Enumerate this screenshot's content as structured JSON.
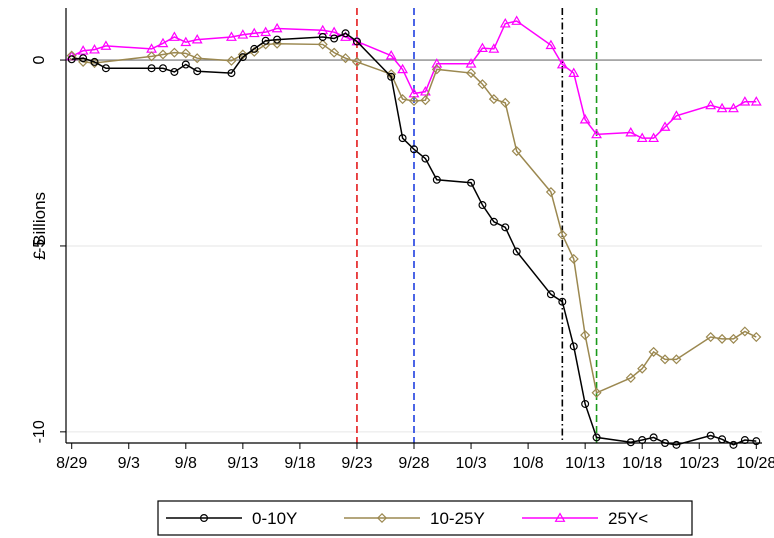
{
  "chart_data": {
    "type": "line",
    "title": "",
    "xlabel": "",
    "ylabel": "£ Billions",
    "x_ticks": [
      "8/29",
      "9/3",
      "9/8",
      "9/13",
      "9/18",
      "9/23",
      "9/28",
      "10/3",
      "10/8",
      "10/13",
      "10/18",
      "10/23",
      "10/28"
    ],
    "y_ticks": [
      "0",
      "-5",
      "-10"
    ],
    "ylim": [
      -10.3,
      1.4
    ],
    "xlim_days_from_8_29": [
      -0.5,
      60.5
    ],
    "vertical_lines": [
      {
        "x": "9/23",
        "color": "#e41a1c",
        "style": "dashed"
      },
      {
        "x": "9/28",
        "color": "#1f3fe0",
        "style": "dashed"
      },
      {
        "x": "10/11",
        "color": "#000000",
        "style": "dashdot"
      },
      {
        "x": "10/14",
        "color": "#1a9a1a",
        "style": "dashed"
      }
    ],
    "series": [
      {
        "name": "0-10Y",
        "color": "#000000",
        "marker": "circle",
        "points": [
          [
            "8/29",
            0.02
          ],
          [
            "8/30",
            0.05
          ],
          [
            "8/31",
            -0.05
          ],
          [
            "9/1",
            -0.22
          ],
          [
            "9/5",
            -0.22
          ],
          [
            "9/6",
            -0.22
          ],
          [
            "9/7",
            -0.32
          ],
          [
            "9/8",
            -0.12
          ],
          [
            "9/9",
            -0.3
          ],
          [
            "9/12",
            -0.35
          ],
          [
            "9/13",
            0.08
          ],
          [
            "9/14",
            0.3
          ],
          [
            "9/15",
            0.52
          ],
          [
            "9/16",
            0.55
          ],
          [
            "9/20",
            0.62
          ],
          [
            "9/21",
            0.58
          ],
          [
            "9/22",
            0.72
          ],
          [
            "9/23",
            0.5
          ],
          [
            "9/26",
            -0.45
          ],
          [
            "9/27",
            -2.1
          ],
          [
            "9/28",
            -2.4
          ],
          [
            "9/29",
            -2.65
          ],
          [
            "9/30",
            -3.22
          ],
          [
            "10/3",
            -3.3
          ],
          [
            "10/4",
            -3.9
          ],
          [
            "10/5",
            -4.35
          ],
          [
            "10/6",
            -4.5
          ],
          [
            "10/7",
            -5.15
          ],
          [
            "10/10",
            -6.3
          ],
          [
            "10/11",
            -6.5
          ],
          [
            "10/12",
            -7.7
          ],
          [
            "10/13",
            -9.25
          ],
          [
            "10/14",
            -10.15
          ],
          [
            "10/17",
            -10.28
          ],
          [
            "10/18",
            -10.22
          ],
          [
            "10/19",
            -10.15
          ],
          [
            "10/20",
            -10.3
          ],
          [
            "10/21",
            -10.35
          ],
          [
            "10/24",
            -10.1
          ],
          [
            "10/25",
            -10.2
          ],
          [
            "10/26",
            -10.35
          ],
          [
            "10/27",
            -10.22
          ],
          [
            "10/28",
            -10.25
          ]
        ]
      },
      {
        "name": "10-25Y",
        "color": "#9b8850",
        "marker": "diamond",
        "points": [
          [
            "8/29",
            0.12
          ],
          [
            "8/30",
            -0.05
          ],
          [
            "8/31",
            -0.08
          ],
          [
            "9/5",
            0.1
          ],
          [
            "9/6",
            0.15
          ],
          [
            "9/7",
            0.2
          ],
          [
            "9/8",
            0.18
          ],
          [
            "9/9",
            0.05
          ],
          [
            "9/12",
            -0.02
          ],
          [
            "9/13",
            0.15
          ],
          [
            "9/14",
            0.22
          ],
          [
            "9/15",
            0.42
          ],
          [
            "9/16",
            0.44
          ],
          [
            "9/20",
            0.42
          ],
          [
            "9/21",
            0.2
          ],
          [
            "9/22",
            0.05
          ],
          [
            "9/23",
            -0.05
          ],
          [
            "9/26",
            -0.38
          ],
          [
            "9/27",
            -1.05
          ],
          [
            "9/28",
            -1.1
          ],
          [
            "9/29",
            -1.08
          ],
          [
            "9/30",
            -0.25
          ],
          [
            "10/3",
            -0.35
          ],
          [
            "10/4",
            -0.65
          ],
          [
            "10/5",
            -1.05
          ],
          [
            "10/6",
            -1.15
          ],
          [
            "10/7",
            -2.45
          ],
          [
            "10/10",
            -3.55
          ],
          [
            "10/11",
            -4.7
          ],
          [
            "10/12",
            -5.35
          ],
          [
            "10/13",
            -7.4
          ],
          [
            "10/14",
            -8.95
          ],
          [
            "10/17",
            -8.55
          ],
          [
            "10/18",
            -8.3
          ],
          [
            "10/19",
            -7.85
          ],
          [
            "10/20",
            -8.05
          ],
          [
            "10/21",
            -8.05
          ],
          [
            "10/24",
            -7.45
          ],
          [
            "10/25",
            -7.5
          ],
          [
            "10/26",
            -7.5
          ],
          [
            "10/27",
            -7.3
          ],
          [
            "10/28",
            -7.45
          ]
        ]
      },
      {
        "name": "25Y<",
        "color": "#ff00ff",
        "marker": "triangle",
        "points": [
          [
            "8/29",
            0.1
          ],
          [
            "8/30",
            0.25
          ],
          [
            "8/31",
            0.28
          ],
          [
            "9/1",
            0.38
          ],
          [
            "9/5",
            0.3
          ],
          [
            "9/6",
            0.45
          ],
          [
            "9/7",
            0.62
          ],
          [
            "9/8",
            0.48
          ],
          [
            "9/9",
            0.55
          ],
          [
            "9/12",
            0.62
          ],
          [
            "9/13",
            0.68
          ],
          [
            "9/14",
            0.72
          ],
          [
            "9/15",
            0.75
          ],
          [
            "9/16",
            0.85
          ],
          [
            "9/20",
            0.8
          ],
          [
            "9/21",
            0.75
          ],
          [
            "9/22",
            0.62
          ],
          [
            "9/23",
            0.5
          ],
          [
            "9/26",
            0.12
          ],
          [
            "9/27",
            -0.25
          ],
          [
            "9/28",
            -0.9
          ],
          [
            "9/29",
            -0.85
          ],
          [
            "9/30",
            -0.1
          ],
          [
            "10/3",
            -0.1
          ],
          [
            "10/4",
            0.32
          ],
          [
            "10/5",
            0.3
          ],
          [
            "10/6",
            0.98
          ],
          [
            "10/7",
            1.05
          ],
          [
            "10/10",
            0.4
          ],
          [
            "10/11",
            -0.12
          ],
          [
            "10/12",
            -0.35
          ],
          [
            "10/13",
            -1.6
          ],
          [
            "10/14",
            -2.0
          ],
          [
            "10/17",
            -1.95
          ],
          [
            "10/18",
            -2.1
          ],
          [
            "10/19",
            -2.1
          ],
          [
            "10/20",
            -1.8
          ],
          [
            "10/21",
            -1.5
          ],
          [
            "10/24",
            -1.22
          ],
          [
            "10/25",
            -1.3
          ],
          [
            "10/26",
            -1.3
          ],
          [
            "10/27",
            -1.12
          ],
          [
            "10/28",
            -1.12
          ]
        ]
      }
    ],
    "legend": {
      "position": "bottom",
      "items": [
        "0-10Y",
        "10-25Y",
        "25Y<"
      ]
    },
    "grid": "horizontal"
  }
}
